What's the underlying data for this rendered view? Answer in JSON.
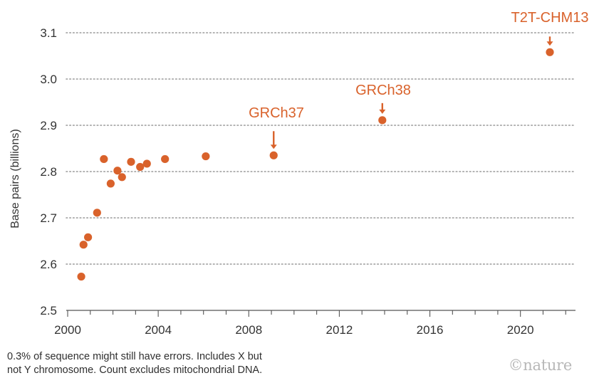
{
  "chart_data": {
    "type": "scatter",
    "ylabel": "Base pairs (billions)",
    "xlim": [
      2000,
      2022.5
    ],
    "ylim": [
      2.5,
      3.1
    ],
    "xticks": [
      2000,
      2004,
      2008,
      2012,
      2016,
      2020
    ],
    "yticks": [
      2.5,
      2.6,
      2.7,
      2.8,
      2.9,
      3.0,
      3.1
    ],
    "grid": "horizontal dotted",
    "marker_color": "#d9622b",
    "points": [
      {
        "x": 2000.6,
        "y": 2.573
      },
      {
        "x": 2000.7,
        "y": 2.642
      },
      {
        "x": 2000.9,
        "y": 2.658
      },
      {
        "x": 2001.3,
        "y": 2.711
      },
      {
        "x": 2001.6,
        "y": 2.827
      },
      {
        "x": 2001.9,
        "y": 2.774
      },
      {
        "x": 2002.2,
        "y": 2.802
      },
      {
        "x": 2002.4,
        "y": 2.788
      },
      {
        "x": 2002.8,
        "y": 2.821
      },
      {
        "x": 2003.2,
        "y": 2.81
      },
      {
        "x": 2003.5,
        "y": 2.817
      },
      {
        "x": 2004.3,
        "y": 2.827
      },
      {
        "x": 2006.1,
        "y": 2.833
      },
      {
        "x": 2009.1,
        "y": 2.835
      },
      {
        "x": 2013.9,
        "y": 2.911
      },
      {
        "x": 2021.3,
        "y": 3.058
      }
    ],
    "annotations": [
      {
        "label": "GRCh37",
        "x": 2009.1,
        "y": 2.835
      },
      {
        "label": "GRCh38",
        "x": 2013.9,
        "y": 2.911
      },
      {
        "label": "T2T-CHM13",
        "x": 2021.3,
        "y": 3.058
      }
    ]
  },
  "footnote": {
    "line1": "0.3% of sequence might still have errors. Includes X but",
    "line2": "not Y chromosome. Count excludes mitochondrial DNA."
  },
  "credit": "©nature"
}
